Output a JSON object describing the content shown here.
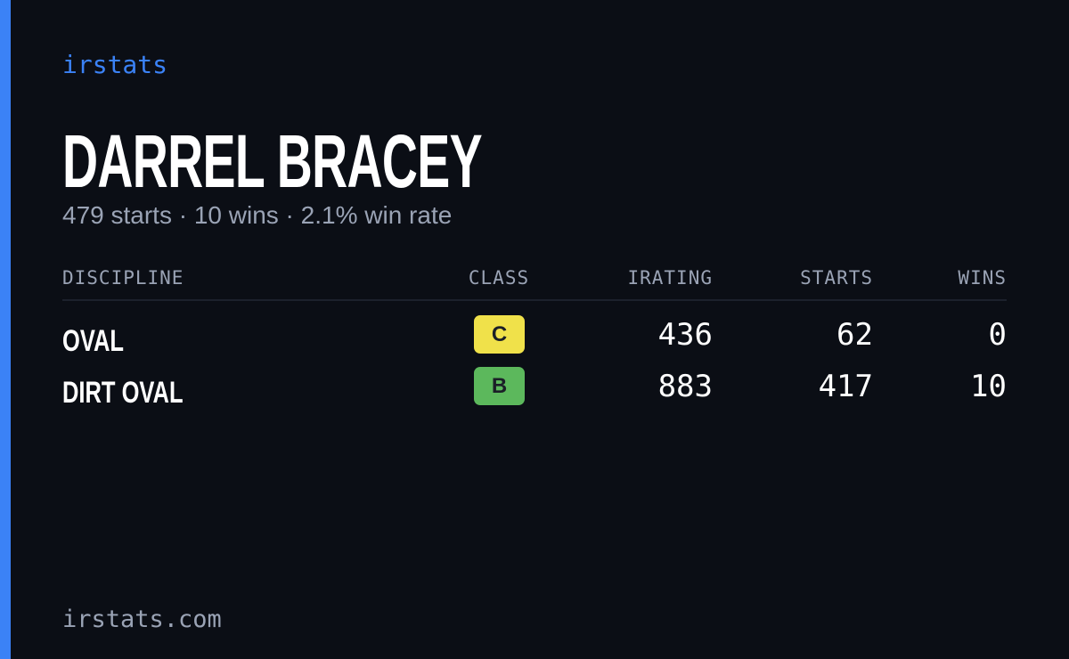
{
  "brand": "irstats",
  "driver": {
    "name": "DARREL BRACEY",
    "summary": "479 starts · 10 wins · 2.1% win rate"
  },
  "table": {
    "header": [
      "DISCIPLINE",
      "CLASS",
      "IRATING",
      "STARTS",
      "WINS"
    ],
    "rows": [
      {
        "discipline": "OVAL",
        "class": "C",
        "class_color": "#f0e14a",
        "irating": 436,
        "starts": 62,
        "wins": 0
      },
      {
        "discipline": "DIRT OVAL",
        "class": "B",
        "class_color": "#5cb85c",
        "irating": 883,
        "starts": 417,
        "wins": 10
      }
    ]
  },
  "footer": "irstats.com"
}
